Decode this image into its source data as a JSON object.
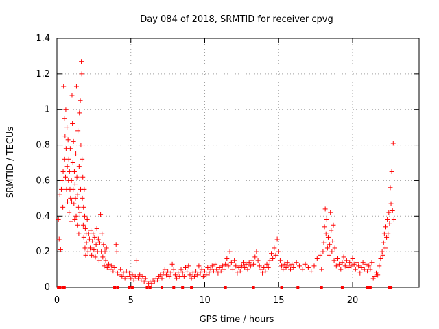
{
  "chart_data": {
    "type": "scatter",
    "title": "Day 084 of 2018, SRMTID for receiver cpvg",
    "xlabel": "GPS time / hours",
    "ylabel": "SRMTID / TECUs",
    "xlim": [
      0,
      24.5
    ],
    "ylim": [
      0,
      1.4
    ],
    "xticks": [
      0,
      5,
      10,
      15,
      20
    ],
    "xtick_labels": [
      "0",
      "5",
      "10",
      "15",
      "20"
    ],
    "yticks": [
      0,
      0.2,
      0.4,
      0.6,
      0.8,
      1.0,
      1.2,
      1.4
    ],
    "ytick_labels": [
      "0",
      "0.2",
      "0.4",
      "0.6",
      "0.8",
      "1",
      "1.2",
      "1.4"
    ],
    "grid": true,
    "marker": "+",
    "marker_color": "#ff0000",
    "series": [
      {
        "name": "SRMTID",
        "points": [
          [
            0.1,
            0.38
          ],
          [
            0.15,
            0.27
          ],
          [
            0.2,
            0.52
          ],
          [
            0.25,
            0.21
          ],
          [
            0.3,
            0.55
          ],
          [
            0.35,
            0.6
          ],
          [
            0.4,
            0.45
          ],
          [
            0.42,
            0.65
          ],
          [
            0.45,
            1.13
          ],
          [
            0.5,
            0.95
          ],
          [
            0.52,
            0.72
          ],
          [
            0.55,
            0.85
          ],
          [
            0.58,
            0.62
          ],
          [
            0.6,
            1.0
          ],
          [
            0.62,
            0.78
          ],
          [
            0.65,
            0.55
          ],
          [
            0.68,
            0.9
          ],
          [
            0.7,
            0.68
          ],
          [
            0.72,
            0.48
          ],
          [
            0.75,
            0.83
          ],
          [
            0.78,
            0.6
          ],
          [
            0.8,
            0.72
          ],
          [
            0.82,
            0.42
          ],
          [
            0.85,
            0.65
          ],
          [
            0.88,
            0.55
          ],
          [
            0.9,
            0.78
          ],
          [
            0.92,
            0.5
          ],
          [
            0.95,
            0.37
          ],
          [
            0.98,
            0.6
          ],
          [
            1.0,
            0.48
          ],
          [
            1.02,
            1.08
          ],
          [
            1.05,
            0.92
          ],
          [
            1.08,
            0.7
          ],
          [
            1.1,
            0.55
          ],
          [
            1.12,
            0.82
          ],
          [
            1.15,
            0.47
          ],
          [
            1.18,
            0.65
          ],
          [
            1.2,
            0.38
          ],
          [
            1.22,
            0.58
          ],
          [
            1.25,
            0.5
          ],
          [
            1.28,
            0.75
          ],
          [
            1.3,
            0.4
          ],
          [
            1.32,
            1.13
          ],
          [
            1.35,
            0.62
          ],
          [
            1.38,
            0.35
          ],
          [
            1.4,
            0.52
          ],
          [
            1.42,
            0.88
          ],
          [
            1.45,
            0.45
          ],
          [
            1.48,
            0.3
          ],
          [
            1.5,
            0.68
          ],
          [
            1.52,
            0.98
          ],
          [
            1.55,
            0.42
          ],
          [
            1.58,
            1.05
          ],
          [
            1.6,
            0.55
          ],
          [
            1.62,
            0.8
          ],
          [
            1.65,
            1.27
          ],
          [
            1.68,
            1.2
          ],
          [
            1.7,
            0.72
          ],
          [
            1.72,
            0.5
          ],
          [
            1.75,
            0.62
          ],
          [
            1.78,
            0.35
          ],
          [
            1.8,
            0.45
          ],
          [
            1.82,
            0.28
          ],
          [
            1.85,
            0.55
          ],
          [
            1.88,
            0.4
          ],
          [
            1.9,
            0.22
          ],
          [
            1.92,
            0.33
          ],
          [
            1.95,
            0.18
          ],
          [
            1.98,
            0.3
          ],
          [
            2.0,
            0.25
          ],
          [
            2.05,
            0.38
          ],
          [
            2.1,
            0.2
          ],
          [
            2.15,
            0.3
          ],
          [
            2.2,
            0.27
          ],
          [
            2.25,
            0.22
          ],
          [
            2.3,
            0.32
          ],
          [
            2.35,
            0.18
          ],
          [
            2.4,
            0.26
          ],
          [
            2.45,
            0.3
          ],
          [
            2.5,
            0.21
          ],
          [
            2.55,
            0.28
          ],
          [
            2.6,
            0.17
          ],
          [
            2.65,
            0.24
          ],
          [
            2.7,
            0.33
          ],
          [
            2.75,
            0.2
          ],
          [
            2.8,
            0.27
          ],
          [
            2.85,
            0.15
          ],
          [
            2.9,
            0.25
          ],
          [
            2.95,
            0.41
          ],
          [
            3.0,
            0.2
          ],
          [
            3.05,
            0.3
          ],
          [
            3.1,
            0.17
          ],
          [
            3.15,
            0.24
          ],
          [
            3.2,
            0.12
          ],
          [
            3.25,
            0.2
          ],
          [
            3.3,
            0.15
          ],
          [
            3.35,
            0.22
          ],
          [
            3.4,
            0.11
          ],
          [
            3.5,
            0.13
          ],
          [
            3.6,
            0.1
          ],
          [
            3.7,
            0.12
          ],
          [
            3.8,
            0.09
          ],
          [
            3.9,
            0.11
          ],
          [
            4.0,
            0.24
          ],
          [
            4.05,
            0.2
          ],
          [
            4.1,
            0.08
          ],
          [
            4.2,
            0.07
          ],
          [
            4.3,
            0.1
          ],
          [
            4.4,
            0.06
          ],
          [
            4.5,
            0.08
          ],
          [
            4.6,
            0.05
          ],
          [
            4.7,
            0.09
          ],
          [
            4.8,
            0.06
          ],
          [
            4.9,
            0.08
          ],
          [
            5.0,
            0.05
          ],
          [
            5.1,
            0.07
          ],
          [
            5.2,
            0.04
          ],
          [
            5.3,
            0.06
          ],
          [
            5.4,
            0.15
          ],
          [
            5.5,
            0.05
          ],
          [
            5.6,
            0.07
          ],
          [
            5.7,
            0.04
          ],
          [
            5.8,
            0.06
          ],
          [
            5.9,
            0.03
          ],
          [
            6.0,
            0.05
          ],
          [
            6.1,
            0.03
          ],
          [
            6.2,
            0.02
          ],
          [
            6.3,
            0.03
          ],
          [
            6.4,
            0.02
          ],
          [
            6.5,
            0.04
          ],
          [
            6.6,
            0.03
          ],
          [
            6.7,
            0.05
          ],
          [
            6.8,
            0.04
          ],
          [
            6.9,
            0.06
          ],
          [
            7.0,
            0.07
          ],
          [
            7.1,
            0.05
          ],
          [
            7.2,
            0.08
          ],
          [
            7.3,
            0.1
          ],
          [
            7.4,
            0.07
          ],
          [
            7.5,
            0.09
          ],
          [
            7.6,
            0.06
          ],
          [
            7.7,
            0.08
          ],
          [
            7.8,
            0.13
          ],
          [
            7.9,
            0.1
          ],
          [
            8.0,
            0.07
          ],
          [
            8.1,
            0.05
          ],
          [
            8.2,
            0.08
          ],
          [
            8.3,
            0.06
          ],
          [
            8.4,
            0.1
          ],
          [
            8.5,
            0.08
          ],
          [
            8.6,
            0.06
          ],
          [
            8.7,
            0.11
          ],
          [
            8.8,
            0.09
          ],
          [
            8.9,
            0.12
          ],
          [
            9.0,
            0.07
          ],
          [
            9.1,
            0.05
          ],
          [
            9.2,
            0.08
          ],
          [
            9.3,
            0.06
          ],
          [
            9.4,
            0.09
          ],
          [
            9.5,
            0.07
          ],
          [
            9.6,
            0.12
          ],
          [
            9.7,
            0.08
          ],
          [
            9.8,
            0.1
          ],
          [
            9.9,
            0.06
          ],
          [
            10.0,
            0.09
          ],
          [
            10.1,
            0.07
          ],
          [
            10.2,
            0.11
          ],
          [
            10.3,
            0.08
          ],
          [
            10.4,
            0.1
          ],
          [
            10.5,
            0.12
          ],
          [
            10.6,
            0.09
          ],
          [
            10.7,
            0.13
          ],
          [
            10.8,
            0.1
          ],
          [
            10.9,
            0.08
          ],
          [
            11.0,
            0.11
          ],
          [
            11.1,
            0.09
          ],
          [
            11.2,
            0.12
          ],
          [
            11.3,
            0.1
          ],
          [
            11.4,
            0.13
          ],
          [
            11.5,
            0.16
          ],
          [
            11.6,
            0.12
          ],
          [
            11.7,
            0.2
          ],
          [
            11.8,
            0.14
          ],
          [
            11.9,
            0.1
          ],
          [
            12.0,
            0.15
          ],
          [
            12.1,
            0.12
          ],
          [
            12.2,
            0.08
          ],
          [
            12.3,
            0.11
          ],
          [
            12.4,
            0.09
          ],
          [
            12.5,
            0.12
          ],
          [
            12.6,
            0.14
          ],
          [
            12.7,
            0.11
          ],
          [
            12.8,
            0.13
          ],
          [
            12.9,
            0.1
          ],
          [
            13.0,
            0.14
          ],
          [
            13.1,
            0.12
          ],
          [
            13.2,
            0.15
          ],
          [
            13.3,
            0.13
          ],
          [
            13.4,
            0.17
          ],
          [
            13.5,
            0.2
          ],
          [
            13.6,
            0.15
          ],
          [
            13.7,
            0.12
          ],
          [
            13.8,
            0.1
          ],
          [
            13.9,
            0.08
          ],
          [
            14.0,
            0.11
          ],
          [
            14.1,
            0.09
          ],
          [
            14.2,
            0.13
          ],
          [
            14.3,
            0.11
          ],
          [
            14.4,
            0.15
          ],
          [
            14.5,
            0.19
          ],
          [
            14.6,
            0.16
          ],
          [
            14.7,
            0.22
          ],
          [
            14.8,
            0.18
          ],
          [
            14.9,
            0.27
          ],
          [
            15.0,
            0.2
          ],
          [
            15.1,
            0.15
          ],
          [
            15.2,
            0.12
          ],
          [
            15.3,
            0.1
          ],
          [
            15.4,
            0.13
          ],
          [
            15.5,
            0.11
          ],
          [
            15.6,
            0.14
          ],
          [
            15.7,
            0.12
          ],
          [
            15.8,
            0.1
          ],
          [
            15.9,
            0.13
          ],
          [
            16.0,
            0.11
          ],
          [
            16.2,
            0.14
          ],
          [
            16.4,
            0.12
          ],
          [
            16.6,
            0.1
          ],
          [
            16.8,
            0.13
          ],
          [
            17.0,
            0.11
          ],
          [
            17.2,
            0.09
          ],
          [
            17.4,
            0.12
          ],
          [
            17.6,
            0.16
          ],
          [
            17.8,
            0.18
          ],
          [
            17.9,
            0.1
          ],
          [
            18.0,
            0.2
          ],
          [
            18.05,
            0.25
          ],
          [
            18.1,
            0.34
          ],
          [
            18.15,
            0.44
          ],
          [
            18.2,
            0.3
          ],
          [
            18.25,
            0.38
          ],
          [
            18.3,
            0.22
          ],
          [
            18.35,
            0.28
          ],
          [
            18.4,
            0.18
          ],
          [
            18.45,
            0.24
          ],
          [
            18.5,
            0.42
          ],
          [
            18.55,
            0.32
          ],
          [
            18.6,
            0.2
          ],
          [
            18.65,
            0.26
          ],
          [
            18.7,
            0.35
          ],
          [
            18.75,
            0.15
          ],
          [
            18.8,
            0.22
          ],
          [
            18.9,
            0.12
          ],
          [
            19.0,
            0.16
          ],
          [
            19.1,
            0.13
          ],
          [
            19.2,
            0.1
          ],
          [
            19.3,
            0.14
          ],
          [
            19.4,
            0.17
          ],
          [
            19.5,
            0.12
          ],
          [
            19.6,
            0.15
          ],
          [
            19.7,
            0.11
          ],
          [
            19.8,
            0.14
          ],
          [
            19.9,
            0.12
          ],
          [
            20.0,
            0.16
          ],
          [
            20.1,
            0.13
          ],
          [
            20.2,
            0.1
          ],
          [
            20.3,
            0.14
          ],
          [
            20.4,
            0.12
          ],
          [
            20.5,
            0.08
          ],
          [
            20.6,
            0.11
          ],
          [
            20.7,
            0.14
          ],
          [
            20.8,
            0.1
          ],
          [
            20.9,
            0.13
          ],
          [
            21.0,
            0.09
          ],
          [
            21.1,
            0.12
          ],
          [
            21.2,
            0.1
          ],
          [
            21.3,
            0.14
          ],
          [
            21.4,
            0.05
          ],
          [
            21.5,
            0.06
          ],
          [
            21.6,
            0.08
          ],
          [
            21.7,
            0.07
          ],
          [
            21.8,
            0.12
          ],
          [
            21.9,
            0.16
          ],
          [
            22.0,
            0.2
          ],
          [
            22.05,
            0.18
          ],
          [
            22.1,
            0.25
          ],
          [
            22.15,
            0.3
          ],
          [
            22.2,
            0.22
          ],
          [
            22.25,
            0.34
          ],
          [
            22.3,
            0.28
          ],
          [
            22.35,
            0.38
          ],
          [
            22.4,
            0.3
          ],
          [
            22.45,
            0.42
          ],
          [
            22.5,
            0.36
          ],
          [
            22.55,
            0.56
          ],
          [
            22.6,
            0.47
          ],
          [
            22.65,
            0.65
          ],
          [
            22.7,
            0.43
          ],
          [
            22.75,
            0.81
          ],
          [
            22.8,
            0.38
          ]
        ]
      }
    ],
    "baseline_markers_y": 0,
    "baseline_markers_x": [
      0.1,
      0.2,
      0.4,
      0.5,
      3.9,
      4.1,
      4.9,
      5.1,
      6.1,
      6.3,
      7.1,
      7.9,
      8.5,
      9.1,
      11.4,
      13.3,
      15.2,
      16.3,
      17.9,
      19.3,
      21.0,
      21.1,
      21.2,
      22.5,
      22.6
    ]
  }
}
